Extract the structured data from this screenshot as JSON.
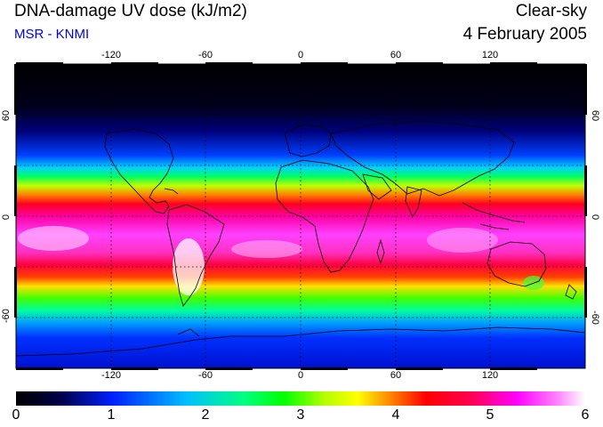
{
  "header": {
    "title": "DNA-damage UV dose (kJ/m2)",
    "subtitle": "MSR - KNMI",
    "sky_condition": "Clear-sky",
    "date": "4 February 2005"
  },
  "map": {
    "longitude_ticks": [
      "-120",
      "-60",
      "0",
      "60",
      "120"
    ],
    "latitude_ticks_left": [
      "60",
      "0",
      "-60"
    ],
    "latitude_ticks_right": [
      "60",
      "0",
      "-60"
    ]
  },
  "colorbar": {
    "labels": [
      "0",
      "1",
      "2",
      "3",
      "4",
      "5",
      "6"
    ],
    "colors": [
      "#000000",
      "#00004a",
      "#0020ff",
      "#00c0ff",
      "#00ff80",
      "#00ff00",
      "#b0ff00",
      "#ffff00",
      "#ff8000",
      "#ff0000",
      "#ff0050",
      "#ff00ff",
      "#ff80ff",
      "#ffffff"
    ]
  },
  "legend_colors": {
    "accent_subtitle": "#0000ee",
    "background": "#ffffff"
  }
}
